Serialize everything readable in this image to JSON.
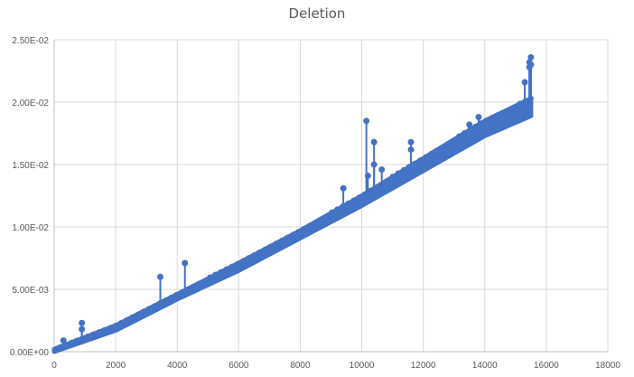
{
  "chart_data": {
    "type": "scatter",
    "title": "Deletion",
    "xlabel": "",
    "ylabel": "",
    "xlim": [
      0,
      18000
    ],
    "ylim": [
      0,
      0.025
    ],
    "x_ticks": [
      "0",
      "2000",
      "4000",
      "6000",
      "8000",
      "10000",
      "12000",
      "14000",
      "16000",
      "18000"
    ],
    "y_ticks": [
      "0.00E+00",
      "5.00E-03",
      "1.00E-02",
      "1.50E-02",
      "2.00E-02",
      "2.50E-02"
    ],
    "grid": true,
    "legend": "none",
    "series_color": "#4472C4",
    "trend": {
      "x": [
        0,
        2000,
        4000,
        6000,
        8000,
        10000,
        12000,
        14000,
        15500
      ],
      "y": [
        0.0,
        0.0019,
        0.0044,
        0.0068,
        0.0094,
        0.0121,
        0.015,
        0.0179,
        0.0196
      ],
      "band_halfwidth": [
        0.0002,
        0.0002,
        0.0002,
        0.0003,
        0.0003,
        0.0004,
        0.0005,
        0.0006,
        0.0007
      ]
    },
    "outliers": [
      {
        "x": 300,
        "y": 0.0009
      },
      {
        "x": 900,
        "y": 0.0023
      },
      {
        "x": 900,
        "y": 0.0018
      },
      {
        "x": 3450,
        "y": 0.006
      },
      {
        "x": 4250,
        "y": 0.0071
      },
      {
        "x": 9400,
        "y": 0.0131
      },
      {
        "x": 10150,
        "y": 0.0185
      },
      {
        "x": 10200,
        "y": 0.0141
      },
      {
        "x": 10400,
        "y": 0.0168
      },
      {
        "x": 10400,
        "y": 0.015
      },
      {
        "x": 10650,
        "y": 0.0146
      },
      {
        "x": 11600,
        "y": 0.0168
      },
      {
        "x": 11600,
        "y": 0.0162
      },
      {
        "x": 13500,
        "y": 0.0182
      },
      {
        "x": 13800,
        "y": 0.0188
      },
      {
        "x": 15300,
        "y": 0.0216
      },
      {
        "x": 15450,
        "y": 0.0228
      },
      {
        "x": 15450,
        "y": 0.0232
      },
      {
        "x": 15500,
        "y": 0.0236
      },
      {
        "x": 15500,
        "y": 0.023
      }
    ]
  }
}
